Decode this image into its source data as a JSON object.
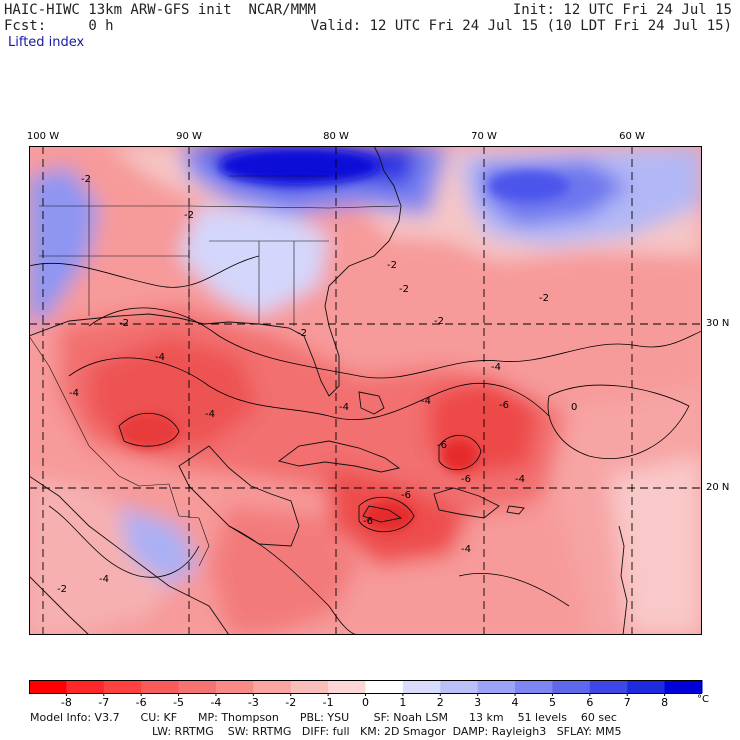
{
  "header": {
    "model_title": "HAIC-HIWC 13km ARW-GFS init",
    "agency": "NCAR/MMM",
    "fcst_label": "Fcst:",
    "fcst_value": "0 h",
    "init": "Init: 12 UTC Fri 24 Jul 15",
    "valid": "Valid: 12 UTC Fri 24 Jul 15 (10 LDT Fri 24 Jul 15)",
    "field": "Lifted index"
  },
  "map": {
    "longitude_labels": [
      "100 W",
      "90 W",
      "80 W",
      "70 W",
      "60 W"
    ],
    "latitude_labels": [
      "30 N",
      "20 N"
    ],
    "contour_labels": [
      "-2",
      "-2",
      "-2",
      "-2",
      "-2",
      "-2",
      "-2",
      "-4",
      "-4",
      "-4",
      "-4",
      "-4",
      "-4",
      "-4",
      "-4",
      "-6",
      "-6",
      "-6",
      "-6",
      "-6",
      "0",
      "-4",
      "-2",
      "-2"
    ],
    "stable_color": "#0a10d8",
    "unstable_color": "#f01c1c"
  },
  "colorbar": {
    "ticks": [
      "-8",
      "-7",
      "-6",
      "-5",
      "-4",
      "-3",
      "-2",
      "-1",
      "0",
      "1",
      "2",
      "3",
      "4",
      "5",
      "6",
      "7",
      "8"
    ],
    "unit": "°C",
    "colors": [
      "#ff0000",
      "#ff2727",
      "#ff4141",
      "#fa5a5a",
      "#f77272",
      "#f88a8a",
      "#faa4a4",
      "#fbbcbc",
      "#fdd7d7",
      "#ffffff",
      "#d9dcfd",
      "#bbc0f9",
      "#9da3f6",
      "#7f86f1",
      "#5f67ec",
      "#3f48e6",
      "#1f29df",
      "#0000d8"
    ]
  },
  "footer": {
    "line1": "Model Info: V3.7      CU: KF      MP: Thompson      PBL: YSU       SF: Noah LSM      13 km    51 levels    60 sec",
    "line2": "LW: RRTMG    SW: RRTMG   DIFF: full   KM: 2D Smagor  DAMP: Rayleigh3   SFLAY: MM5"
  }
}
